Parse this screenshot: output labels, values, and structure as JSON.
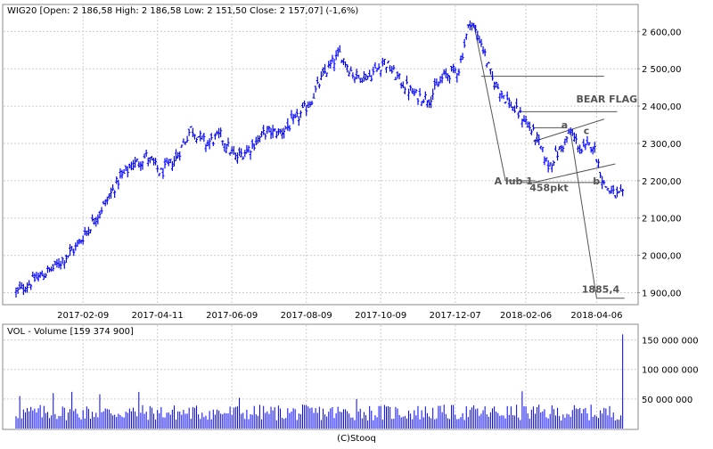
{
  "chart_data": [
    {
      "type": "ohlc",
      "title": "WIG20 [Open: 2 186,58  High: 2 186,58  Low: 2 151,50  Close: 2 157,07] (-1,6%)",
      "x_ticks": [
        "2017-02-09",
        "2017-04-11",
        "2017-06-09",
        "2017-08-09",
        "2017-10-09",
        "2017-12-07",
        "2018-02-06",
        "2018-04-06"
      ],
      "y_ticks": [
        "1 900,00",
        "2 000,00",
        "2 100,00",
        "2 200,00",
        "2 300,00",
        "2 400,00",
        "2 500,00",
        "2 600,00"
      ],
      "y_tick_values": [
        1900,
        2000,
        2100,
        2200,
        2300,
        2400,
        2500,
        2600
      ],
      "ylim": [
        1870,
        2670
      ],
      "grid": true,
      "series_color": "#0000ff",
      "close_path": [
        [
          0,
          1900
        ],
        [
          10,
          1935
        ],
        [
          20,
          1965
        ],
        [
          32,
          2020
        ],
        [
          40,
          2080
        ],
        [
          48,
          2140
        ],
        [
          55,
          2200
        ],
        [
          62,
          2240
        ],
        [
          70,
          2265
        ],
        [
          78,
          2220
        ],
        [
          86,
          2260
        ],
        [
          94,
          2340
        ],
        [
          102,
          2300
        ],
        [
          110,
          2320
        ],
        [
          118,
          2260
        ],
        [
          126,
          2290
        ],
        [
          134,
          2330
        ],
        [
          142,
          2330
        ],
        [
          150,
          2360
        ],
        [
          158,
          2410
        ],
        [
          166,
          2490
        ],
        [
          174,
          2540
        ],
        [
          182,
          2480
        ],
        [
          190,
          2480
        ],
        [
          198,
          2520
        ],
        [
          206,
          2470
        ],
        [
          214,
          2430
        ],
        [
          222,
          2420
        ],
        [
          230,
          2480
        ],
        [
          238,
          2500
        ],
        [
          244,
          2630
        ],
        [
          250,
          2570
        ],
        [
          256,
          2470
        ],
        [
          262,
          2430
        ],
        [
          268,
          2390
        ],
        [
          274,
          2360
        ],
        [
          280,
          2310
        ],
        [
          286,
          2240
        ],
        [
          292,
          2280
        ],
        [
          298,
          2330
        ],
        [
          304,
          2280
        ],
        [
          310,
          2300
        ],
        [
          316,
          2190
        ],
        [
          322,
          2160
        ]
      ],
      "annotations": {
        "labels": [
          {
            "text": "BEAR FLAG",
            "x": 301,
            "y": 2410
          },
          {
            "text": "a",
            "x": 293,
            "y": 2340
          },
          {
            "text": "c",
            "x": 305,
            "y": 2325
          },
          {
            "text": "b",
            "x": 310,
            "y": 2190
          },
          {
            "text": "A lub 1",
            "x": 257,
            "y": 2190
          },
          {
            "text": "458pkt",
            "x": 276,
            "y": 2172
          },
          {
            "text": "1885,4",
            "x": 304,
            "y": 1900
          }
        ],
        "lines": [
          {
            "x1": 246,
            "y1": 2620,
            "x2": 263,
            "y2": 2200
          },
          {
            "x1": 263,
            "y1": 2200,
            "x2": 279,
            "y2": 2200
          },
          {
            "x1": 250,
            "y1": 2480,
            "x2": 316,
            "y2": 2480
          },
          {
            "x1": 270,
            "y1": 2385,
            "x2": 323,
            "y2": 2385
          },
          {
            "x1": 278,
            "y1": 2305,
            "x2": 316,
            "y2": 2365
          },
          {
            "x1": 278,
            "y1": 2195,
            "x2": 322,
            "y2": 2245
          },
          {
            "x1": 272,
            "y1": 2195,
            "x2": 316,
            "y2": 2195
          },
          {
            "x1": 298,
            "y1": 2330,
            "x2": 312,
            "y2": 1885
          },
          {
            "x1": 312,
            "y1": 1885,
            "x2": 327,
            "y2": 1885
          },
          {
            "x1": 278,
            "y1": 2342,
            "x2": 296,
            "y2": 2342
          }
        ]
      }
    },
    {
      "type": "bar",
      "title": "VOL - Volume [159 374 900]",
      "y_ticks": [
        "50 000 000",
        "100 000 000",
        "150 000 000"
      ],
      "y_tick_values": [
        50000000,
        100000000,
        150000000
      ],
      "ylim": [
        0,
        175000000
      ],
      "grid": true,
      "series_color": "#0000ff",
      "baseline": 30000000,
      "spikes": [
        {
          "x": 2,
          "value": 55000000
        },
        {
          "x": 20,
          "value": 60000000
        },
        {
          "x": 30,
          "value": 62000000
        },
        {
          "x": 45,
          "value": 58000000
        },
        {
          "x": 66,
          "value": 62000000
        },
        {
          "x": 120,
          "value": 52000000
        },
        {
          "x": 183,
          "value": 50000000
        },
        {
          "x": 272,
          "value": 63000000
        },
        {
          "x": 326,
          "value": 159374900
        }
      ]
    }
  ],
  "footer": "(C)Stooq"
}
